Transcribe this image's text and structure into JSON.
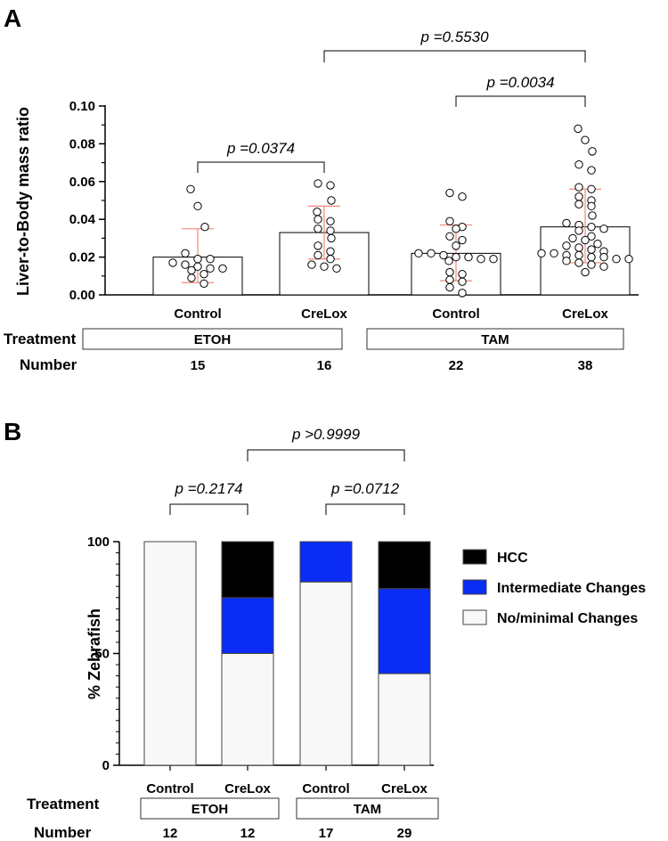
{
  "chart_data": [
    {
      "panel": "A",
      "type": "scatter",
      "ylabel": "Liver-to-Body mass ratio",
      "ylim": [
        0,
        0.1
      ],
      "yticks": [
        "0.00",
        "0.02",
        "0.04",
        "0.06",
        "0.08",
        "0.10"
      ],
      "categories": [
        "Control",
        "CreLox",
        "Control",
        "CreLox"
      ],
      "means": [
        0.02,
        0.033,
        0.022,
        0.036
      ],
      "sd_low": [
        0.0065,
        0.019,
        0.0075,
        0.017
      ],
      "sd_high": [
        0.035,
        0.047,
        0.037,
        0.056
      ],
      "points": [
        [
          0.056,
          0.047,
          0.036,
          0.022,
          0.019,
          0.019,
          0.017,
          0.016,
          0.015,
          0.014,
          0.014,
          0.013,
          0.011,
          0.009,
          0.006
        ],
        [
          0.059,
          0.058,
          0.05,
          0.044,
          0.04,
          0.039,
          0.035,
          0.034,
          0.03,
          0.026,
          0.023,
          0.021,
          0.019,
          0.016,
          0.015,
          0.014
        ],
        [
          0.054,
          0.052,
          0.039,
          0.036,
          0.035,
          0.031,
          0.029,
          0.026,
          0.022,
          0.022,
          0.021,
          0.02,
          0.02,
          0.019,
          0.019,
          0.018,
          0.012,
          0.011,
          0.008,
          0.007,
          0.004,
          0.001
        ],
        [
          0.088,
          0.082,
          0.076,
          0.069,
          0.066,
          0.057,
          0.056,
          0.052,
          0.05,
          0.048,
          0.047,
          0.042,
          0.038,
          0.037,
          0.036,
          0.035,
          0.034,
          0.031,
          0.03,
          0.029,
          0.027,
          0.026,
          0.025,
          0.024,
          0.023,
          0.022,
          0.022,
          0.021,
          0.021,
          0.02,
          0.02,
          0.019,
          0.019,
          0.018,
          0.017,
          0.016,
          0.015,
          0.012
        ]
      ],
      "comparisons": [
        {
          "label": "p =0.0374",
          "from": 0,
          "to": 1
        },
        {
          "label": "p =0.0034",
          "from": 2,
          "to": 3
        },
        {
          "label": "p =0.5530",
          "from": 1,
          "to": 3
        }
      ],
      "groups": [
        {
          "row_label": "Treatment",
          "name": "ETOH",
          "span": [
            0,
            1
          ]
        },
        {
          "name": "TAM",
          "span": [
            2,
            3
          ]
        }
      ],
      "number_label": "Number",
      "numbers": [
        "15",
        "16",
        "22",
        "38"
      ]
    },
    {
      "panel": "B",
      "type": "bar",
      "stacked": true,
      "ylabel": "% Zebrafish",
      "ylim": [
        0,
        100
      ],
      "yticks": [
        "0",
        "50",
        "100"
      ],
      "categories": [
        "Control",
        "CreLox",
        "Control",
        "CreLox"
      ],
      "series": [
        {
          "name": "No/minimal Changes",
          "values": [
            100,
            50,
            82,
            41
          ],
          "color": "#f8f8f8"
        },
        {
          "name": "Intermediate Changes",
          "values": [
            0,
            25,
            18,
            38
          ],
          "color": "#0a2cf5"
        },
        {
          "name": "HCC",
          "values": [
            0,
            25,
            0,
            21
          ],
          "color": "#000000"
        }
      ],
      "legend_order": [
        "HCC",
        "Intermediate Changes",
        "No/minimal Changes"
      ],
      "comparisons": [
        {
          "label": "p =0.2174",
          "from": 0,
          "to": 1
        },
        {
          "label": "p =0.0712",
          "from": 2,
          "to": 3
        },
        {
          "label": "p >0.9999",
          "from": 1,
          "to": 3
        }
      ],
      "groups": [
        {
          "row_label": "Treatment",
          "name": "ETOH",
          "span": [
            0,
            1
          ]
        },
        {
          "name": "TAM",
          "span": [
            2,
            3
          ]
        }
      ],
      "number_label": "Number",
      "numbers": [
        "12",
        "12",
        "17",
        "29"
      ]
    }
  ],
  "colors": {
    "sd_bar": "#f08878",
    "axis": "#000000"
  }
}
